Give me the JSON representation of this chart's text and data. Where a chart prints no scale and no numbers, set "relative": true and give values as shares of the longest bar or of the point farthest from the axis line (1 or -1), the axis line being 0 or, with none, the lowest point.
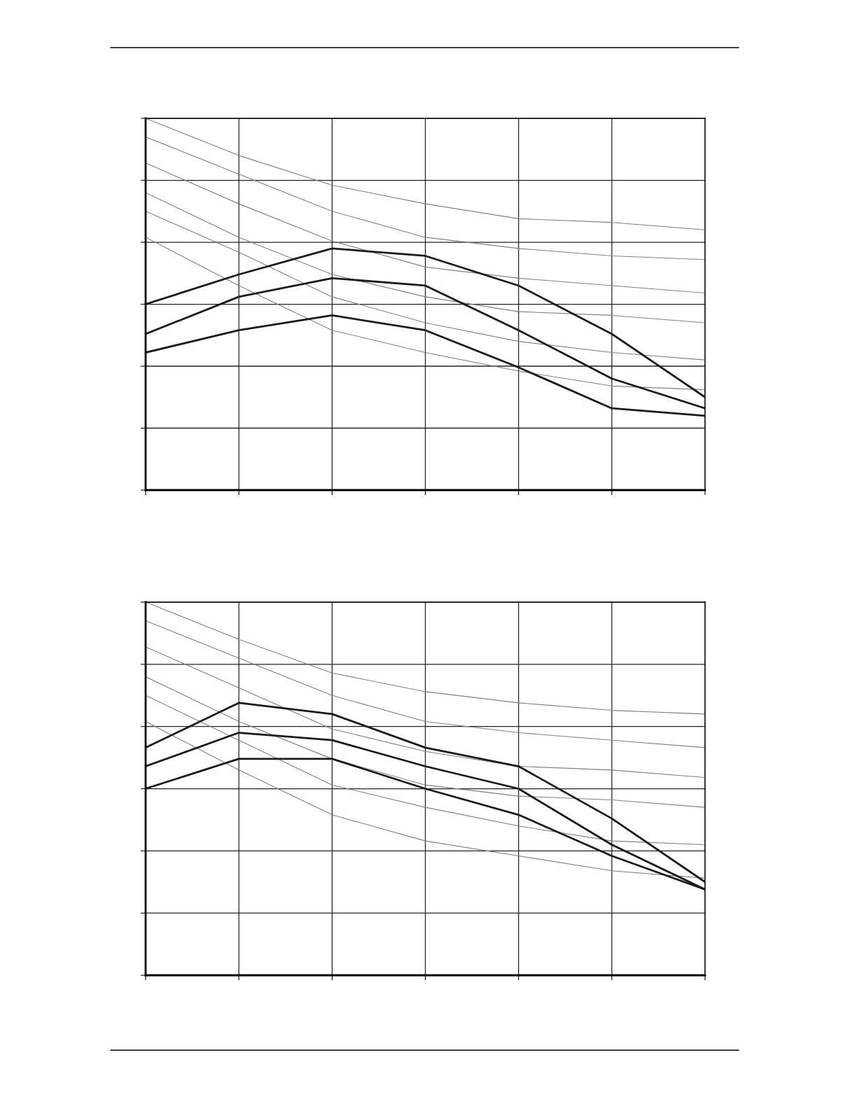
{
  "chart_data": [
    {
      "type": "line",
      "relative": true,
      "grid": true,
      "marker": "none",
      "line_style": "solid",
      "categories": [
        null,
        null,
        null,
        null,
        null,
        null,
        null
      ],
      "series": [
        {
          "color": "#808080",
          "values": [
            1.0,
            0.9,
            0.82,
            0.77,
            0.73,
            0.72,
            0.7
          ]
        },
        {
          "color": "#808080",
          "values": [
            0.95,
            0.85,
            0.75,
            0.68,
            0.65,
            0.63,
            0.62
          ]
        },
        {
          "color": "#808080",
          "values": [
            0.88,
            0.77,
            0.67,
            0.6,
            0.57,
            0.55,
            0.53
          ]
        },
        {
          "color": "#808080",
          "values": [
            0.8,
            0.68,
            0.58,
            0.52,
            0.48,
            0.47,
            0.45
          ]
        },
        {
          "color": "#808080",
          "values": [
            0.75,
            0.64,
            0.52,
            0.45,
            0.4,
            0.37,
            0.35
          ]
        },
        {
          "color": "#808080",
          "values": [
            0.68,
            0.55,
            0.43,
            0.37,
            0.32,
            0.28,
            0.27
          ]
        },
        {
          "color": "#1a1a1a",
          "values": [
            0.5,
            0.58,
            0.65,
            0.63,
            0.55,
            0.42,
            0.25
          ]
        },
        {
          "color": "#1a1a1a",
          "values": [
            0.42,
            0.52,
            0.57,
            0.55,
            0.43,
            0.3,
            0.22
          ]
        },
        {
          "color": "#1a1a1a",
          "values": [
            0.37,
            0.43,
            0.47,
            0.43,
            0.33,
            0.22,
            0.2
          ]
        }
      ]
    },
    {
      "type": "line",
      "relative": true,
      "grid": true,
      "marker": "none",
      "line_style": "solid",
      "categories": [
        null,
        null,
        null,
        null,
        null,
        null,
        null
      ],
      "series": [
        {
          "color": "#808080",
          "values": [
            1.0,
            0.9,
            0.81,
            0.76,
            0.73,
            0.71,
            0.7
          ]
        },
        {
          "color": "#808080",
          "values": [
            0.95,
            0.85,
            0.75,
            0.68,
            0.65,
            0.63,
            0.61
          ]
        },
        {
          "color": "#808080",
          "values": [
            0.88,
            0.77,
            0.66,
            0.6,
            0.56,
            0.55,
            0.53
          ]
        },
        {
          "color": "#808080",
          "values": [
            0.8,
            0.68,
            0.58,
            0.51,
            0.48,
            0.47,
            0.45
          ]
        },
        {
          "color": "#808080",
          "values": [
            0.75,
            0.63,
            0.51,
            0.45,
            0.4,
            0.36,
            0.35
          ]
        },
        {
          "color": "#808080",
          "values": [
            0.68,
            0.55,
            0.43,
            0.36,
            0.32,
            0.28,
            0.26
          ]
        },
        {
          "color": "#1a1a1a",
          "values": [
            0.61,
            0.73,
            0.7,
            0.61,
            0.56,
            0.42,
            0.25
          ]
        },
        {
          "color": "#1a1a1a",
          "values": [
            0.56,
            0.65,
            0.63,
            0.56,
            0.5,
            0.35,
            0.23
          ]
        },
        {
          "color": "#1a1a1a",
          "values": [
            0.5,
            0.58,
            0.58,
            0.5,
            0.43,
            0.32,
            0.23
          ]
        }
      ]
    }
  ]
}
